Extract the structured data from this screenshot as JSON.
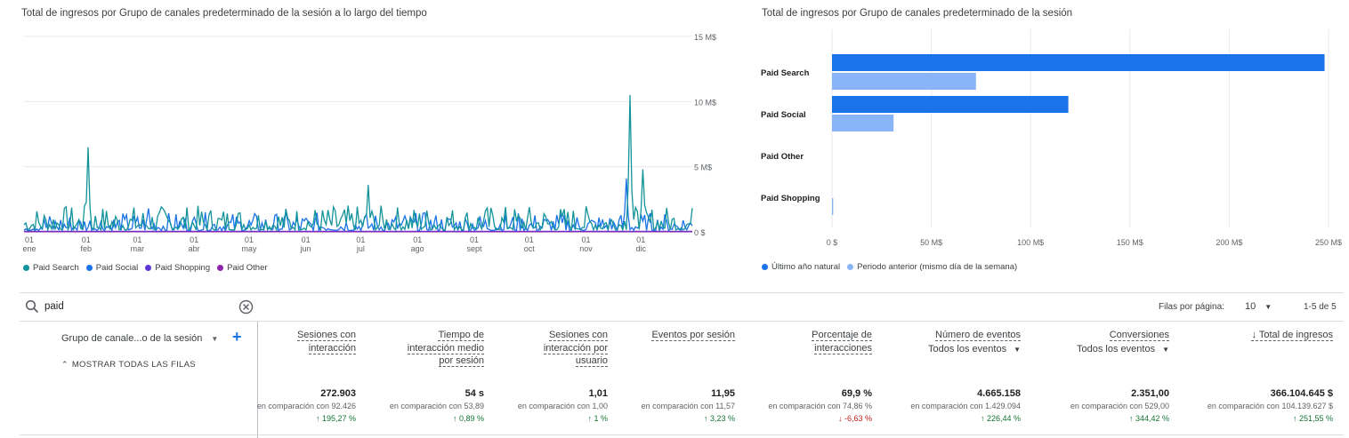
{
  "chart_data": [
    {
      "type": "line",
      "title": "Total de ingresos por Grupo de canales predeterminado de la sesión a lo largo del tiempo",
      "y_ticks": [
        "15 M$",
        "10 M$",
        "5 M$",
        "0 $"
      ],
      "ylim": [
        0,
        15000000
      ],
      "x_ticks": [
        {
          "day": "01",
          "month": "ene"
        },
        {
          "day": "01",
          "month": "feb"
        },
        {
          "day": "01",
          "month": "mar"
        },
        {
          "day": "01",
          "month": "abr"
        },
        {
          "day": "01",
          "month": "may"
        },
        {
          "day": "01",
          "month": "jun"
        },
        {
          "day": "01",
          "month": "jul"
        },
        {
          "day": "01",
          "month": "ago"
        },
        {
          "day": "01",
          "month": "sept"
        },
        {
          "day": "01",
          "month": "oct"
        },
        {
          "day": "01",
          "month": "nov"
        },
        {
          "day": "01",
          "month": "dic"
        }
      ],
      "legend": [
        "Paid Search",
        "Paid Social",
        "Paid Shopping",
        "Paid Other"
      ],
      "colors": {
        "Paid Search": "#12939a",
        "Paid Social": "#1a73e8",
        "Paid Shopping": "#5e35d6",
        "Paid Other": "#8e24aa"
      },
      "series": [
        {
          "name": "Paid Search",
          "peaks": [
            [
              "2022-02-05",
              6500000
            ],
            [
              "2022-11-28",
              10500000
            ],
            [
              "2022-12-05",
              4800000
            ],
            [
              "2022-07-08",
              3600000
            ]
          ]
        },
        {
          "name": "Paid Social",
          "peaks": [
            [
              "2022-11-26",
              4100000
            ],
            [
              "2022-03-10",
              1800000
            ]
          ]
        },
        {
          "name": "Paid Shopping",
          "values": "≈0"
        },
        {
          "name": "Paid Other",
          "values": "≈0"
        }
      ]
    },
    {
      "type": "bar",
      "title": "Total de ingresos por Grupo de canales predeterminado de la sesión",
      "categories": [
        "Paid Search",
        "Paid Social",
        "Paid Other",
        "Paid Shopping"
      ],
      "x_ticks": [
        "0 $",
        "50 M$",
        "100 M$",
        "150 M$",
        "200 M$",
        "250 M$"
      ],
      "xlim": [
        0,
        250000000
      ],
      "legend": [
        "Último año natural",
        "Periodo anterior (mismo día de la semana)"
      ],
      "series": [
        {
          "name": "Último año natural",
          "color": "#1a73e8",
          "values": [
            248000000,
            119000000,
            0,
            0
          ]
        },
        {
          "name": "Periodo anterior (mismo día de la semana)",
          "color": "#8ab4f8",
          "values": [
            72500000,
            31000000,
            0,
            600000
          ]
        }
      ]
    }
  ],
  "search": {
    "value": "paid"
  },
  "pagination": {
    "rows_label": "Filas por página:",
    "rows_value": "10",
    "range": "1-5 de 5"
  },
  "dimension": {
    "label": "Grupo de canale...o de la sesión",
    "show_all": "MOSTRAR TODAS LAS FILAS"
  },
  "columns": [
    {
      "h1": "Sesiones con",
      "h2": "interacción",
      "h3": "",
      "sub": "",
      "value": "272.903",
      "cmp": "en comparación con 92.426",
      "delta": "↑ 195,27 %",
      "dir": "up"
    },
    {
      "h1": "Tiempo de",
      "h2": "interacción medio",
      "h3": "por sesión",
      "sub": "",
      "value": "54 s",
      "cmp": "en comparación con 53,89",
      "delta": "↑ 0,89 %",
      "dir": "up"
    },
    {
      "h1": "Sesiones con",
      "h2": "interacción por",
      "h3": "usuario",
      "sub": "",
      "value": "1,01",
      "cmp": "en comparación con 1,00",
      "delta": "↑ 1 %",
      "dir": "up"
    },
    {
      "h1": "Eventos por sesión",
      "h2": "",
      "h3": "",
      "sub": "",
      "value": "11,95",
      "cmp": "en comparación con 11,57",
      "delta": "↑ 3,23 %",
      "dir": "up"
    },
    {
      "h1": "Porcentaje de",
      "h2": "interacciones",
      "h3": "",
      "sub": "",
      "value": "69,9 %",
      "cmp": "en comparación con 74,86 %",
      "delta": "↓ -6,63 %",
      "dir": "down"
    },
    {
      "h1": "Número de eventos",
      "h2": "",
      "h3": "",
      "sub": "Todos los eventos",
      "value": "4.665.158",
      "cmp": "en comparación con 1.429.094",
      "delta": "↑ 226,44 %",
      "dir": "up"
    },
    {
      "h1": "Conversiones",
      "h2": "",
      "h3": "",
      "sub": "Todos los eventos",
      "value": "2.351,00",
      "cmp": "en comparación con 529,00",
      "delta": "↑ 344,42 %",
      "dir": "up"
    },
    {
      "h1": "↓ Total de ingresos",
      "h2": "",
      "h3": "",
      "sub": "",
      "value": "366.104.645 $",
      "cmp": "en comparación con 104.139.627 $",
      "delta": "↑ 251,55 %",
      "dir": "up"
    }
  ]
}
